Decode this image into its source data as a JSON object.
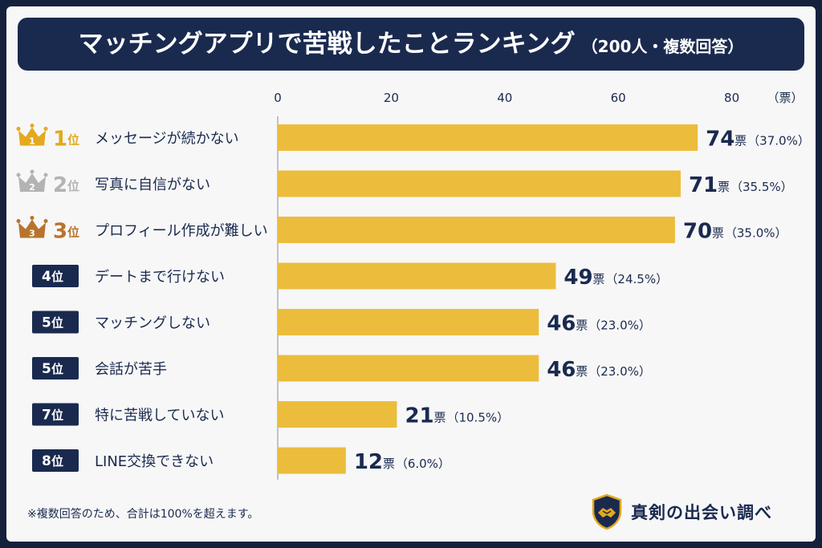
{
  "title": {
    "main": "マッチングアプリで苦戦したことランキング",
    "sub": "（200人・複数回答）"
  },
  "chart_data": {
    "type": "bar",
    "orientation": "horizontal",
    "xlim": [
      0,
      80
    ],
    "x_ticks": [
      "0",
      "20",
      "40",
      "60",
      "80"
    ],
    "x_unit_label": "（票）",
    "bar_color": "#ecbd3c",
    "categories": [
      "メッセージが続かない",
      "写真に自信がない",
      "プロフィール作成が難しい",
      "デートまで行けない",
      "マッチングしない",
      "会話が苦手",
      "特に苦戦していない",
      "LINE交換できない"
    ],
    "ranks": [
      "1",
      "2",
      "3",
      "4",
      "5",
      "5",
      "7",
      "8"
    ],
    "rank_suffix": "位",
    "values": [
      74,
      71,
      70,
      49,
      46,
      46,
      21,
      12
    ],
    "value_unit": "票",
    "percents": [
      "（37.0%）",
      "（35.5%）",
      "（35.0%）",
      "（24.5%）",
      "（23.0%）",
      "（23.0%）",
      "（10.5%）",
      "（6.0%）"
    ],
    "medal_colors": [
      "#e4a91e",
      "#b3b3b3",
      "#b8742d"
    ],
    "badge_color": "#1a2a4f"
  },
  "footnote": "※複数回答のため、合計は100%を超えます。",
  "brand": {
    "name": "真剣の出会い調べ",
    "icon": "handshake-shield-icon"
  }
}
